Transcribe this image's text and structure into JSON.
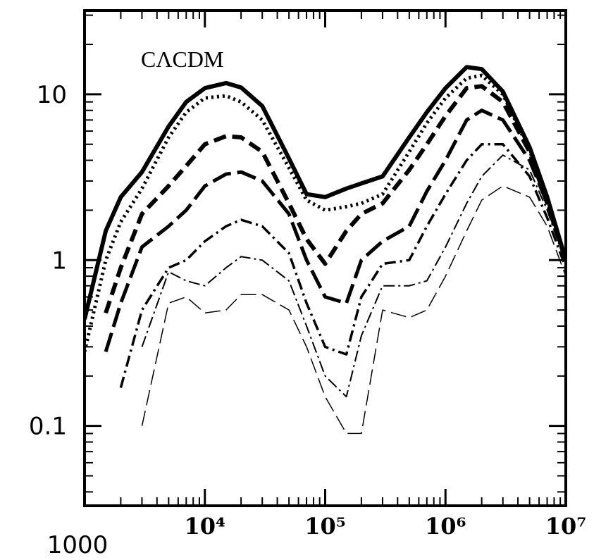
{
  "chart_data": {
    "type": "line",
    "annotation": "CΛCDM",
    "log_x": true,
    "log_y": true,
    "xlim": [
      1000,
      10000000
    ],
    "ylim": [
      0.033,
      32
    ],
    "xticks": [
      1000,
      {
        "value": 10000,
        "label": "10⁴"
      },
      {
        "value": 100000,
        "label": "10⁵"
      },
      {
        "value": 1000000,
        "label": "10⁶"
      },
      {
        "value": 10000000,
        "label": "10⁷"
      }
    ],
    "yticks": [
      0.1,
      1,
      10
    ],
    "x": [
      1000,
      1500,
      2000,
      3000,
      5000,
      7000,
      10000,
      15000,
      20000,
      30000,
      50000,
      70000,
      100000,
      150000,
      200000,
      300000,
      500000,
      700000,
      1000000,
      1500000,
      2000000,
      3000000,
      5000000,
      7000000,
      10000000
    ],
    "series": [
      {
        "color": "#000000",
        "values": [
          0.44,
          1.5,
          2.4,
          3.4,
          6.4,
          9.0,
          10.9,
          11.7,
          11,
          8.5,
          4.1,
          2.5,
          2.4,
          2.7,
          2.9,
          3.2,
          5.5,
          7.8,
          10.9,
          14.6,
          14.2,
          10.4,
          4.8,
          2.4,
          1
        ]
      },
      {
        "color": "#000000",
        "values": [
          0.28,
          1.0,
          1.7,
          2.7,
          5.5,
          7.8,
          9.5,
          9.8,
          9.0,
          7,
          3.6,
          2.3,
          2.0,
          2.1,
          2.2,
          2.5,
          4.5,
          6.7,
          9.5,
          12.5,
          13,
          10,
          4.6,
          2.3,
          1
        ]
      },
      {
        "color": "#000000",
        "values": [
          null,
          0.48,
          0.9,
          1.9,
          2.8,
          3.7,
          5,
          5.6,
          5.5,
          4.5,
          2.2,
          1.34,
          0.95,
          1.5,
          1.9,
          2.2,
          3.5,
          5,
          7.4,
          10.9,
          11.2,
          9,
          4.5,
          2.2,
          1
        ]
      },
      {
        "color": "#000000",
        "values": [
          null,
          0.28,
          0.55,
          1.2,
          1.6,
          2.0,
          2.8,
          3.3,
          3.4,
          3.0,
          1.9,
          1.0,
          0.6,
          0.55,
          1.0,
          1.3,
          1.6,
          2.6,
          4.0,
          7.0,
          8.0,
          7,
          4,
          2.2,
          1
        ]
      },
      {
        "color": "#000000",
        "values": [
          null,
          null,
          0.17,
          0.5,
          0.9,
          1.0,
          1.3,
          1.6,
          1.75,
          1.6,
          1.1,
          0.55,
          0.3,
          0.27,
          0.6,
          0.95,
          1.0,
          1.6,
          2.5,
          4.0,
          5.0,
          5,
          3.2,
          1.8,
          0.9
        ]
      },
      {
        "color": "#000000",
        "values": [
          null,
          null,
          null,
          0.3,
          0.85,
          0.75,
          0.7,
          0.9,
          1.05,
          1.0,
          0.75,
          0.4,
          0.2,
          0.15,
          0.35,
          0.7,
          0.7,
          0.75,
          1.2,
          2.2,
          3.2,
          4.3,
          3.5,
          2.0,
          0.95
        ]
      },
      {
        "color": "#000000",
        "values": [
          null,
          null,
          null,
          0.1,
          0.55,
          0.6,
          0.48,
          0.5,
          0.62,
          0.62,
          0.5,
          0.3,
          0.15,
          0.09,
          0.09,
          0.5,
          0.45,
          0.5,
          0.8,
          1.5,
          2.3,
          2.8,
          2.4,
          1.6,
          0.8
        ]
      }
    ]
  }
}
